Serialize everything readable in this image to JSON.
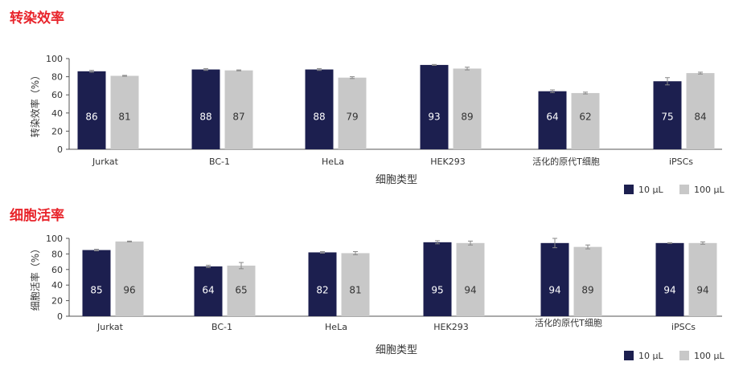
{
  "colors": {
    "dark": "#1c1f4f",
    "light": "#c8c8c8",
    "title": "#e8242b",
    "axis": "#555555"
  },
  "chart_data": [
    {
      "type": "bar",
      "title": "转染效率",
      "ylabel": "转染效率（%）",
      "xlabel": "细胞类型",
      "ylim": [
        0,
        100
      ],
      "yticks": [
        "0",
        "20",
        "40",
        "60",
        "80",
        "100"
      ],
      "categories": [
        "Jurkat",
        "BC-1",
        "HeLa",
        "HEK293",
        "活化的原代T细胞",
        "iPSCs"
      ],
      "series": [
        {
          "name": "10 μL",
          "values": [
            86,
            88,
            88,
            93,
            64,
            75
          ],
          "labels": [
            "86",
            "88",
            "88",
            "93",
            "64",
            "75"
          ],
          "errors": [
            1,
            1,
            1,
            0.5,
            1.5,
            4
          ]
        },
        {
          "name": "100 μL",
          "values": [
            81,
            87,
            79,
            89,
            62,
            84
          ],
          "labels": [
            "81",
            "87",
            "79",
            "89",
            "62",
            "84"
          ],
          "errors": [
            0.5,
            0.5,
            1,
            1.5,
            1,
            1
          ]
        }
      ],
      "legend": "bottom-right",
      "grid": false
    },
    {
      "type": "bar",
      "title": "细胞活率",
      "ylabel": "细胞活率（%）",
      "xlabel": "细胞类型",
      "ylim": [
        0,
        100
      ],
      "yticks": [
        "0",
        "20",
        "40",
        "60",
        "80",
        "100"
      ],
      "categories": [
        "Jurkat",
        "BC-1",
        "HeLa",
        "HEK293",
        "活化的原代T细胞",
        "iPSCs"
      ],
      "series": [
        {
          "name": "10 μL",
          "values": [
            85,
            64,
            82,
            95,
            94,
            94
          ],
          "labels": [
            "85",
            "64",
            "82",
            "95",
            "94",
            "94"
          ],
          "errors": [
            1,
            1.5,
            1,
            2,
            6,
            0.5
          ]
        },
        {
          "name": "100 μL",
          "values": [
            96,
            65,
            81,
            94,
            89,
            94
          ],
          "labels": [
            "96",
            "65",
            "81",
            "94",
            "89",
            "94"
          ],
          "errors": [
            0.5,
            4,
            2,
            2.5,
            2.5,
            1.5
          ]
        }
      ],
      "legend": "bottom-right",
      "grid": false
    }
  ]
}
